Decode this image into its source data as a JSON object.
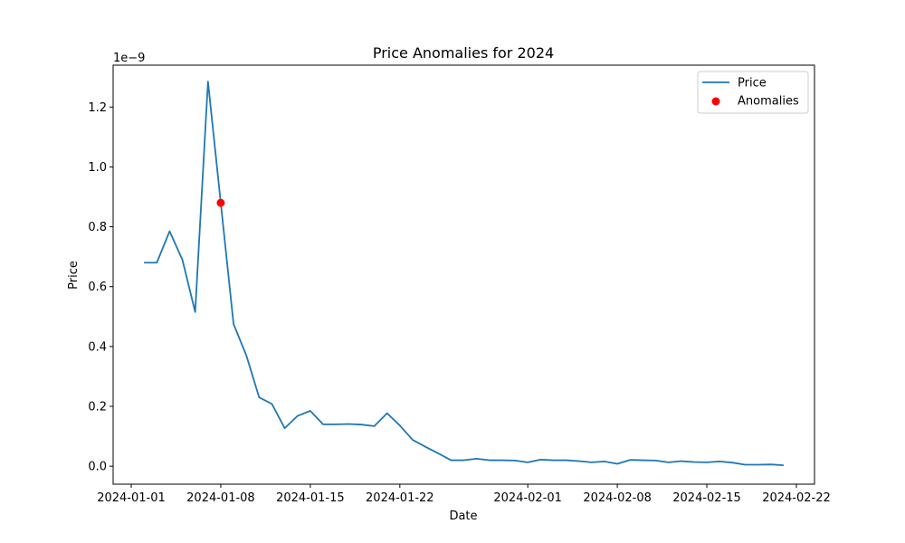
{
  "chart_data": {
    "type": "line",
    "title": "Price Anomalies for 2024",
    "xlabel": "Date",
    "ylabel": "Price",
    "y_offset_label": "1e−9",
    "y_scale": 1e-09,
    "x_range": [
      "2024-01-01",
      "2024-02-22"
    ],
    "ylim": [
      -0.06,
      1.34
    ],
    "x_ticks": [
      "2024-01-01",
      "2024-01-08",
      "2024-01-15",
      "2024-01-22",
      "2024-02-01",
      "2024-02-08",
      "2024-02-15",
      "2024-02-22"
    ],
    "y_ticks": [
      0.0,
      0.2,
      0.4,
      0.6,
      0.8,
      1.0,
      1.2
    ],
    "y_tick_labels": [
      "0.0",
      "0.2",
      "0.4",
      "0.6",
      "0.8",
      "1.0",
      "1.2"
    ],
    "grid": false,
    "legend_position": "top-right",
    "series": [
      {
        "name": "Price",
        "kind": "line",
        "color": "#1f77b4",
        "x": [
          "2024-01-02",
          "2024-01-03",
          "2024-01-04",
          "2024-01-05",
          "2024-01-06",
          "2024-01-07",
          "2024-01-08",
          "2024-01-09",
          "2024-01-10",
          "2024-01-11",
          "2024-01-12",
          "2024-01-13",
          "2024-01-14",
          "2024-01-15",
          "2024-01-16",
          "2024-01-17",
          "2024-01-18",
          "2024-01-19",
          "2024-01-20",
          "2024-01-21",
          "2024-01-22",
          "2024-01-23",
          "2024-01-24",
          "2024-01-25",
          "2024-01-26",
          "2024-01-27",
          "2024-01-28",
          "2024-01-29",
          "2024-01-30",
          "2024-01-31",
          "2024-02-01",
          "2024-02-02",
          "2024-02-03",
          "2024-02-04",
          "2024-02-05",
          "2024-02-06",
          "2024-02-07",
          "2024-02-08",
          "2024-02-09",
          "2024-02-10",
          "2024-02-11",
          "2024-02-12",
          "2024-02-13",
          "2024-02-14",
          "2024-02-15",
          "2024-02-16",
          "2024-02-17",
          "2024-02-18",
          "2024-02-19",
          "2024-02-20",
          "2024-02-21"
        ],
        "values": [
          0.68,
          0.68,
          0.785,
          0.69,
          0.515,
          1.285,
          0.88,
          0.475,
          0.37,
          0.23,
          0.208,
          0.127,
          0.168,
          0.185,
          0.14,
          0.14,
          0.141,
          0.139,
          0.134,
          0.177,
          0.136,
          0.088,
          0.065,
          0.043,
          0.02,
          0.02,
          0.025,
          0.02,
          0.02,
          0.019,
          0.013,
          0.022,
          0.02,
          0.02,
          0.017,
          0.013,
          0.016,
          0.008,
          0.021,
          0.02,
          0.019,
          0.013,
          0.017,
          0.014,
          0.013,
          0.016,
          0.012,
          0.005,
          0.005,
          0.006,
          0.003
        ]
      },
      {
        "name": "Anomalies",
        "kind": "scatter",
        "color": "#ff0000",
        "x": [
          "2024-01-08"
        ],
        "values": [
          0.88
        ]
      }
    ]
  }
}
